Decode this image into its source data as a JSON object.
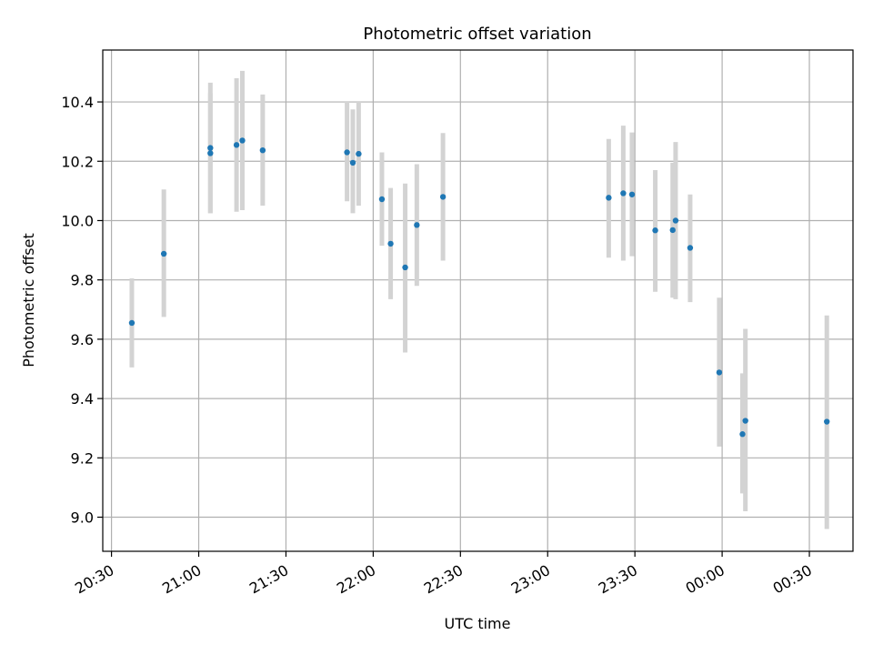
{
  "chart_data": {
    "type": "scatter",
    "title": "Photometric offset variation",
    "xlabel": "UTC time",
    "ylabel": "Photometric offset",
    "xlim": [
      "20:27",
      "00:45"
    ],
    "ylim": [
      8.885,
      10.575
    ],
    "grid": true,
    "x_ticks": [
      "20:30",
      "21:00",
      "21:30",
      "22:00",
      "22:30",
      "23:00",
      "23:30",
      "00:00",
      "00:30"
    ],
    "y_ticks": [
      9.0,
      9.2,
      9.4,
      9.6,
      9.8,
      10.0,
      10.2,
      10.4
    ],
    "x_tick_labels": [
      "20:30",
      "21:00",
      "21:30",
      "22:00",
      "22:30",
      "23:00",
      "23:30",
      "00:00",
      "00:30"
    ],
    "y_tick_labels": [
      "9.0",
      "9.2",
      "9.4",
      "9.6",
      "9.8",
      "10.0",
      "10.2",
      "10.4"
    ],
    "point_color": "#1f77b4",
    "errorbar_color": "#d3d3d3",
    "series": [
      {
        "points": [
          {
            "x": "20:37",
            "y": 9.655,
            "ylow": 9.505,
            "yhigh": 9.805
          },
          {
            "x": "20:48",
            "y": 9.888,
            "ylow": 9.675,
            "yhigh": 10.105
          },
          {
            "x": "21:04",
            "y": 10.227,
            "ylow": 10.025,
            "yhigh": 10.43
          },
          {
            "x": "21:04",
            "y": 10.245,
            "ylow": 10.025,
            "yhigh": 10.465
          },
          {
            "x": "21:13",
            "y": 10.255,
            "ylow": 10.03,
            "yhigh": 10.48
          },
          {
            "x": "21:15",
            "y": 10.27,
            "ylow": 10.035,
            "yhigh": 10.505
          },
          {
            "x": "21:22",
            "y": 10.237,
            "ylow": 10.05,
            "yhigh": 10.425
          },
          {
            "x": "21:51",
            "y": 10.23,
            "ylow": 10.065,
            "yhigh": 10.4
          },
          {
            "x": "21:53",
            "y": 10.195,
            "ylow": 10.025,
            "yhigh": 10.375
          },
          {
            "x": "21:55",
            "y": 10.225,
            "ylow": 10.05,
            "yhigh": 10.4
          },
          {
            "x": "22:03",
            "y": 10.072,
            "ylow": 9.915,
            "yhigh": 10.23
          },
          {
            "x": "22:06",
            "y": 9.922,
            "ylow": 9.735,
            "yhigh": 10.11
          },
          {
            "x": "22:11",
            "y": 9.842,
            "ylow": 9.555,
            "yhigh": 10.125
          },
          {
            "x": "22:15",
            "y": 9.985,
            "ylow": 9.78,
            "yhigh": 10.19
          },
          {
            "x": "22:24",
            "y": 10.08,
            "ylow": 9.865,
            "yhigh": 10.295
          },
          {
            "x": "23:21",
            "y": 10.077,
            "ylow": 9.875,
            "yhigh": 10.275
          },
          {
            "x": "23:26",
            "y": 10.092,
            "ylow": 9.865,
            "yhigh": 10.32
          },
          {
            "x": "23:29",
            "y": 10.088,
            "ylow": 9.88,
            "yhigh": 10.297
          },
          {
            "x": "23:37",
            "y": 9.967,
            "ylow": 9.76,
            "yhigh": 10.17
          },
          {
            "x": "23:43",
            "y": 9.968,
            "ylow": 9.74,
            "yhigh": 10.195
          },
          {
            "x": "23:44",
            "y": 10.0,
            "ylow": 9.735,
            "yhigh": 10.265
          },
          {
            "x": "23:49",
            "y": 9.908,
            "ylow": 9.725,
            "yhigh": 10.088
          },
          {
            "x": "23:59",
            "y": 9.488,
            "ylow": 9.238,
            "yhigh": 9.74
          },
          {
            "x": "00:07",
            "y": 9.28,
            "ylow": 9.08,
            "yhigh": 9.485
          },
          {
            "x": "00:08",
            "y": 9.325,
            "ylow": 9.02,
            "yhigh": 9.635
          },
          {
            "x": "00:36",
            "y": 9.322,
            "ylow": 8.96,
            "yhigh": 9.68
          }
        ]
      }
    ]
  }
}
